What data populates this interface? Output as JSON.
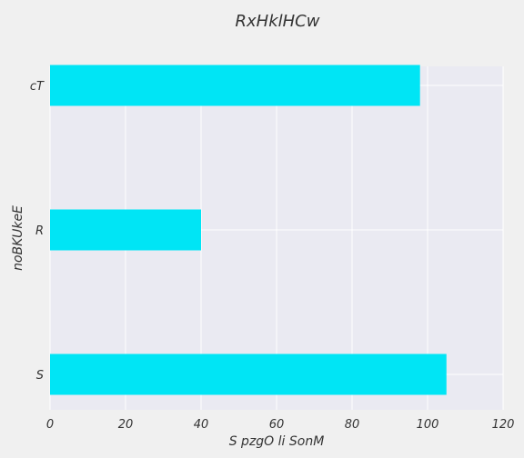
{
  "chart_data": {
    "type": "bar",
    "orientation": "horizontal",
    "title": "RxHklHCw",
    "xlabel": "S pzgO li SonM",
    "ylabel": "noBKUkeE",
    "categories": [
      "S",
      "R",
      "cT"
    ],
    "values": [
      105,
      40,
      98
    ],
    "xlim": [
      0,
      120
    ],
    "xticks": [
      0,
      20,
      40,
      60,
      80,
      100,
      120
    ],
    "grid": true,
    "colors": {
      "bar": "#00e5f5",
      "plot_background": "#eaeaf2",
      "figure_background": "#f0f0f0",
      "grid": "#ffffff"
    }
  }
}
